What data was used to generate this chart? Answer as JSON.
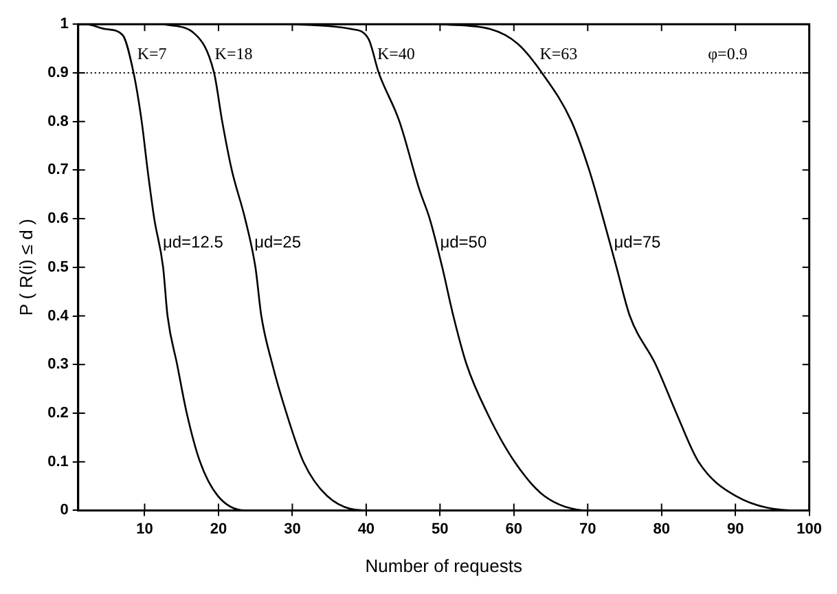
{
  "chart_data": {
    "type": "line",
    "xlabel": "Number of requests",
    "ylabel": "P ( R(i) ≤ d )",
    "xlim": [
      1,
      100
    ],
    "xticks": [
      10,
      20,
      30,
      40,
      50,
      60,
      70,
      80,
      90,
      100
    ],
    "ylim": [
      0,
      1
    ],
    "yticks": [
      0,
      0.1,
      0.2,
      0.3,
      0.4,
      0.5,
      0.6,
      0.7,
      0.8,
      0.9,
      1
    ],
    "grid": false,
    "legend": false,
    "marker": "none",
    "line_style": "solid",
    "series": [
      {
        "name": "μd=12.5",
        "color": "#000000",
        "x": [
          1,
          2,
          4.7,
          7,
          8.5,
          9.6,
          10.4,
          11.3,
          12.5,
          13.1,
          14.4,
          15.7,
          17.5,
          19.9,
          23.6,
          40
        ],
        "values": [
          1,
          1,
          0.99,
          0.978,
          0.9,
          0.8,
          0.7,
          0.6,
          0.5,
          0.4,
          0.3,
          0.2,
          0.1,
          0.03,
          0,
          0
        ]
      },
      {
        "name": "μd=25",
        "color": "#000000",
        "x": [
          12.6,
          16.8,
          19.4,
          20.5,
          21.8,
          23.6,
          25,
          25.8,
          27.3,
          29.2,
          31.5,
          34.7,
          39.6,
          55
        ],
        "values": [
          1,
          0.98,
          0.9,
          0.8,
          0.7,
          0.6,
          0.5,
          0.4,
          0.3,
          0.2,
          0.1,
          0.03,
          0,
          0
        ]
      },
      {
        "name": "μd=50",
        "color": "#000000",
        "x": [
          30,
          38,
          40.3,
          41.7,
          44.5,
          47.2,
          48.6,
          50.3,
          51.8,
          53.6,
          56.4,
          60.1,
          64.1,
          70.2,
          85
        ],
        "values": [
          1,
          0.99,
          0.97,
          0.9,
          0.8,
          0.66,
          0.6,
          0.5,
          0.4,
          0.3,
          0.2,
          0.1,
          0.03,
          0,
          0
        ]
      },
      {
        "name": "μd=75",
        "color": "#000000",
        "x": [
          50,
          56.8,
          60.5,
          63.8,
          67.8,
          70.2,
          72.1,
          73.9,
          75.7,
          79.2,
          82,
          85,
          90,
          98.6,
          100
        ],
        "values": [
          1,
          0.99,
          0.96,
          0.9,
          0.8,
          0.7,
          0.6,
          0.5,
          0.4,
          0.3,
          0.2,
          0.1,
          0.03,
          0,
          0
        ]
      }
    ],
    "ref_lines": [
      {
        "axis": "y",
        "value": 0.9,
        "line_style": "dotted",
        "color": "#000000"
      }
    ],
    "annotations": [
      {
        "text": "K=7",
        "x": 9,
        "y": 0.92
      },
      {
        "text": "K=18",
        "x": 19.5,
        "y": 0.92
      },
      {
        "text": "K=40",
        "x": 41.5,
        "y": 0.92
      },
      {
        "text": "K=63",
        "x": 63.5,
        "y": 0.92
      },
      "φ=0.9"
    ]
  }
}
